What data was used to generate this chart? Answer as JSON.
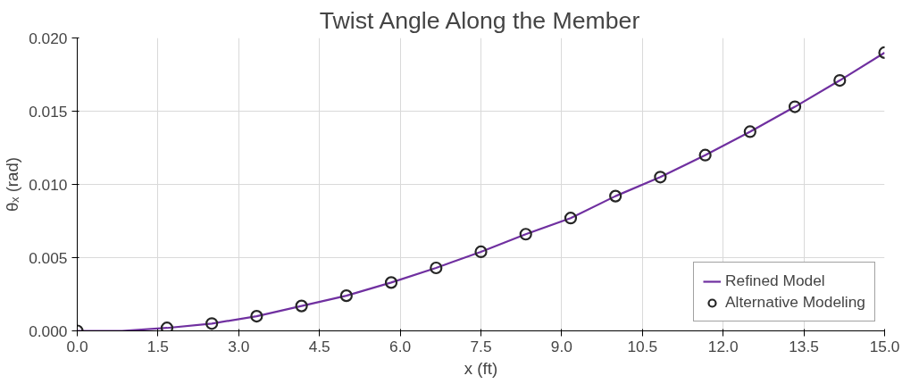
{
  "chart_data": {
    "type": "line",
    "title": "Twist Angle Along the Member",
    "xlabel": "x (ft)",
    "ylabel": "θₓ (rad)",
    "xlim": [
      0,
      15
    ],
    "ylim": [
      0,
      0.02
    ],
    "xticks": [
      {
        "value": 0,
        "label": "0.0"
      },
      {
        "value": 1.5,
        "label": "1.5"
      },
      {
        "value": 3,
        "label": "3.0"
      },
      {
        "value": 4.5,
        "label": "4.5"
      },
      {
        "value": 6,
        "label": "6.0"
      },
      {
        "value": 7.5,
        "label": "7.5"
      },
      {
        "value": 9,
        "label": "9.0"
      },
      {
        "value": 10.5,
        "label": "10.5"
      },
      {
        "value": 12,
        "label": "12.0"
      },
      {
        "value": 13.5,
        "label": "13.5"
      },
      {
        "value": 15,
        "label": "15.0"
      }
    ],
    "yticks": [
      {
        "value": 0,
        "label": "0.000"
      },
      {
        "value": 0.005,
        "label": "0.005"
      },
      {
        "value": 0.01,
        "label": "0.010"
      },
      {
        "value": 0.015,
        "label": "0.015"
      },
      {
        "value": 0.02,
        "label": "0.020"
      }
    ],
    "grid": true,
    "legend": "bottom right",
    "series": [
      {
        "name": "Refined Model",
        "color": "#7030a0",
        "marker": "none",
        "x": [
          0,
          0.833,
          1.667,
          2.5,
          3.333,
          4.167,
          5.0,
          5.833,
          6.667,
          7.5,
          8.333,
          9.167,
          10.0,
          10.833,
          11.667,
          12.5,
          13.333,
          14.167,
          15.0
        ],
        "values": [
          0,
          0,
          0.0002,
          0.0005,
          0.001,
          0.0017,
          0.0024,
          0.0033,
          0.0043,
          0.0054,
          0.0066,
          0.0077,
          0.0092,
          0.0105,
          0.012,
          0.0136,
          0.0153,
          0.0171,
          0.019
        ]
      },
      {
        "name": "Alternative Modeling",
        "type": "scatter",
        "color": "#262626",
        "marker": "circle",
        "x": [
          0,
          1.667,
          2.5,
          3.333,
          4.167,
          5.0,
          5.833,
          6.667,
          7.5,
          8.333,
          9.167,
          10.0,
          10.833,
          11.667,
          12.5,
          13.333,
          14.167,
          15.0
        ],
        "values": [
          0,
          0.0002,
          0.0005,
          0.001,
          0.0017,
          0.0024,
          0.0033,
          0.0043,
          0.0054,
          0.0066,
          0.0077,
          0.0092,
          0.0105,
          0.012,
          0.0136,
          0.0153,
          0.0171,
          0.019
        ]
      }
    ]
  }
}
